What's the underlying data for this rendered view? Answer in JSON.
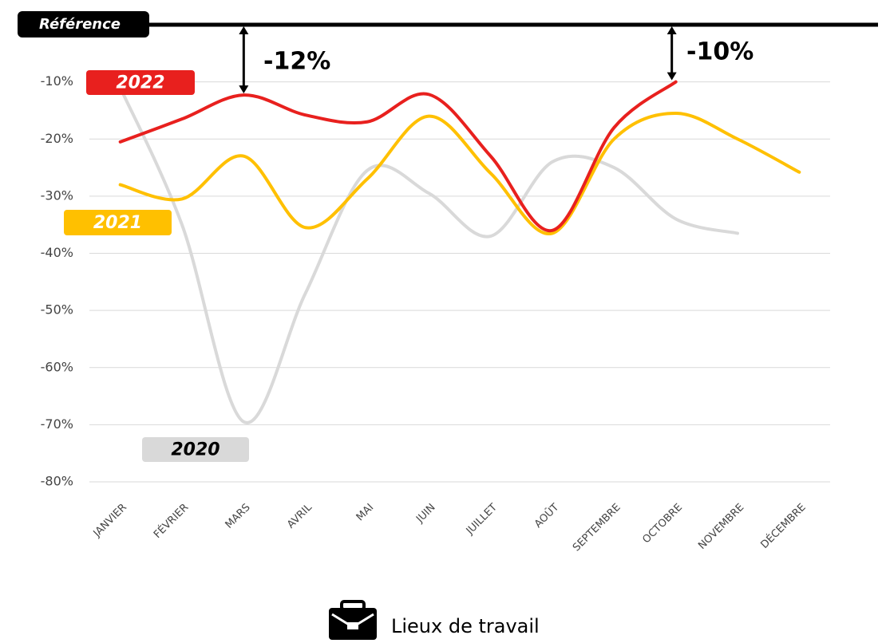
{
  "chart_data": {
    "type": "line",
    "reference_label": "Référence",
    "annotations": [
      "-12%",
      "-10%"
    ],
    "footer": "Lieux de travail",
    "categories": [
      "JANVIER",
      "FÉVRIER",
      "MARS",
      "AVRIL",
      "MAI",
      "JUIN",
      "JUILLET",
      "AOÛT",
      "SEPTEMBRE",
      "OCTOBRE",
      "NOVEMBRE",
      "DÉCEMBRE"
    ],
    "series": [
      {
        "name": "2020",
        "color": "#d9d9d9",
        "values": [
          -11,
          -35,
          -69.5,
          -47,
          -25.5,
          -29.5,
          -37,
          -24,
          -25,
          -34,
          -36.5,
          null
        ]
      },
      {
        "name": "2021",
        "color": "#ffc000",
        "values": [
          -28,
          -30.5,
          -23,
          -35.5,
          -27,
          -16,
          -26,
          -36.5,
          -20,
          -15.5,
          -20,
          -25.8
        ]
      },
      {
        "name": "2022",
        "color": "#e8201e",
        "values": [
          -20.5,
          -16.5,
          -12.3,
          -15.8,
          -17,
          -12.2,
          -23,
          -36,
          -18,
          -10,
          null,
          null
        ]
      }
    ],
    "ylim": [
      -80,
      0
    ],
    "yticks": [
      {
        "value": -10,
        "label": "-10%"
      },
      {
        "value": -20,
        "label": "-20%"
      },
      {
        "value": -30,
        "label": "-30%"
      },
      {
        "value": -40,
        "label": "-40%"
      },
      {
        "value": -50,
        "label": "-50%"
      },
      {
        "value": -60,
        "label": "-60%"
      },
      {
        "value": -70,
        "label": "-70%"
      },
      {
        "value": -80,
        "label": "-80%"
      }
    ],
    "grid": true
  }
}
